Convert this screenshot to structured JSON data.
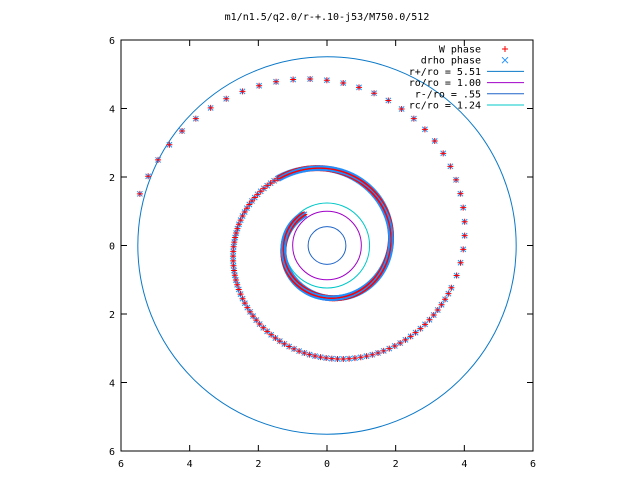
{
  "chart_data": {
    "type": "scatter",
    "title": "m1/n1.5/q2.0/r-+.10-j53/M750.0/512",
    "xlabel": "",
    "ylabel": "",
    "xlim": [
      -6,
      6
    ],
    "ylim": [
      -6,
      6
    ],
    "x_ticks": [
      -6,
      -4,
      -2,
      0,
      2,
      4,
      6
    ],
    "y_ticks": [
      -6,
      -4,
      -2,
      0,
      2,
      4,
      6
    ],
    "tick_labels": [
      "6",
      "4",
      "2",
      "0",
      "2",
      "4",
      "6"
    ],
    "grid": false,
    "legend_position": "top-right",
    "spiral": {
      "center": [
        0.0,
        0.0
      ],
      "radius_at_theta0": 0.86,
      "growth_per_radian": 0.122,
      "theta_start_rad": 2.2,
      "theta_end_rad": 15.5
    },
    "series": [
      {
        "name": "W phase",
        "marker": "+",
        "color": "#ff0000"
      },
      {
        "name": "drho phase",
        "marker": "x",
        "color": "#1e90ff"
      }
    ],
    "circles": [
      {
        "name": "r+/ro = 5.51",
        "radius": 5.51,
        "color": "#0a78c8"
      },
      {
        "name": "ro/ro = 1.00",
        "radius": 1.0,
        "color": "#a000c8"
      },
      {
        "name": "r-/ro = .55",
        "radius": 0.55,
        "color": "#1e64c8"
      },
      {
        "name": "rc/ro = 1.24",
        "radius": 1.24,
        "color": "#00c8c8"
      }
    ]
  }
}
